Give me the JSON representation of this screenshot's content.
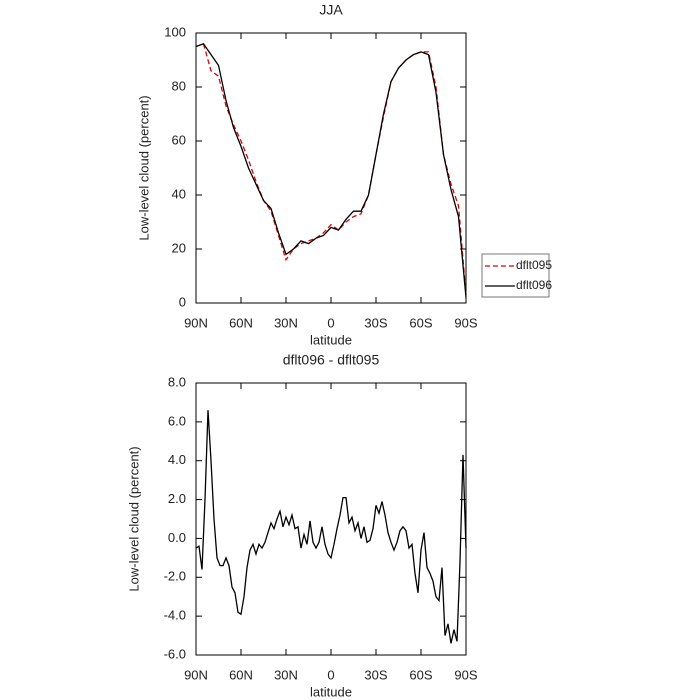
{
  "chart_data": [
    {
      "type": "line",
      "title": "JJA",
      "xlabel": "latitude",
      "ylabel": "Low-level cloud (percent)",
      "x": [
        90,
        85,
        80,
        75,
        70,
        65,
        60,
        55,
        50,
        45,
        40,
        35,
        30,
        25,
        20,
        15,
        10,
        5,
        0,
        -5,
        -10,
        -15,
        -20,
        -25,
        -30,
        -35,
        -40,
        -45,
        -50,
        -55,
        -60,
        -65,
        -70,
        -75,
        -80,
        -85,
        -90
      ],
      "series": [
        {
          "name": "dflt095",
          "color": "#e00000",
          "line_style": "dashed",
          "values": [
            95,
            96,
            86,
            84,
            73,
            66,
            60,
            53,
            45,
            38,
            34,
            25,
            16,
            20,
            22,
            23,
            24,
            26,
            29,
            27,
            30,
            32,
            33,
            40,
            55,
            69,
            82,
            87,
            90,
            92,
            93,
            93,
            80,
            55,
            44,
            36,
            3
          ]
        },
        {
          "name": "dflt096",
          "color": "#000000",
          "line_style": "solid",
          "values": [
            95,
            96,
            92,
            88,
            75,
            65,
            58,
            50,
            44,
            38,
            35,
            26,
            18,
            20,
            23,
            22,
            24,
            25,
            28,
            27,
            31,
            34,
            34,
            40,
            55,
            70,
            82,
            87,
            90,
            92,
            93,
            92,
            78,
            55,
            42,
            32,
            2
          ]
        }
      ],
      "xlim": [
        90,
        -90
      ],
      "xticks": [
        {
          "value": 90,
          "label": "90N"
        },
        {
          "value": 60,
          "label": "60N"
        },
        {
          "value": 30,
          "label": "30N"
        },
        0,
        {
          "value": -30,
          "label": "30S"
        },
        {
          "value": -60,
          "label": "60S"
        },
        {
          "value": -90,
          "label": "90S"
        }
      ],
      "ylim": [
        0,
        100
      ],
      "yticks": [
        0,
        20,
        40,
        60,
        80,
        100
      ],
      "grid": false,
      "legend": "right"
    },
    {
      "type": "line",
      "title": "dflt096 - dflt095",
      "xlabel": "latitude",
      "ylabel": "Low-level cloud (percent)",
      "x": [
        90,
        88,
        86,
        84,
        82,
        80,
        78,
        76,
        74,
        72,
        70,
        68,
        66,
        64,
        62,
        60,
        58,
        56,
        54,
        52,
        50,
        48,
        46,
        44,
        42,
        40,
        38,
        36,
        34,
        32,
        30,
        28,
        26,
        24,
        22,
        20,
        18,
        16,
        14,
        12,
        10,
        8,
        6,
        4,
        2,
        0,
        -2,
        -4,
        -6,
        -8,
        -10,
        -12,
        -14,
        -16,
        -18,
        -20,
        -22,
        -24,
        -26,
        -28,
        -30,
        -32,
        -34,
        -36,
        -38,
        -40,
        -42,
        -44,
        -46,
        -48,
        -50,
        -52,
        -54,
        -56,
        -58,
        -60,
        -62,
        -64,
        -66,
        -68,
        -70,
        -72,
        -74,
        -76,
        -78,
        -80,
        -82,
        -84,
        -86,
        -88,
        -90
      ],
      "series": [
        {
          "name": "dflt096 - dflt095",
          "color": "#000000",
          "line_style": "solid",
          "values": [
            -0.5,
            -0.4,
            -1.6,
            2,
            6.6,
            4,
            1,
            -1,
            -1.4,
            -1.4,
            -1,
            -1.4,
            -2.5,
            -2.8,
            -3.8,
            -3.9,
            -3,
            -1.5,
            -0.6,
            -0.3,
            -0.8,
            -0.3,
            -0.5,
            -0.2,
            0.3,
            0.8,
            0.5,
            1,
            1.4,
            0.6,
            1.1,
            0.7,
            1.2,
            0.5,
            0.6,
            -0.5,
            0.2,
            -0.3,
            0.9,
            -0.2,
            -0.5,
            -0.2,
            0.6,
            -0.3,
            -0.8,
            -1,
            -0.3,
            0.5,
            1.2,
            2.1,
            2.1,
            0.8,
            1.1,
            0.4,
            0.8,
            0,
            0.6,
            -0.2,
            -0.1,
            0.5,
            1.7,
            1.3,
            1.9,
            1.2,
            0.3,
            -0.2,
            -0.6,
            -0.2,
            0.4,
            0.6,
            0.4,
            -0.5,
            -0.3,
            -1.8,
            -2.8,
            -0.6,
            0.3,
            -1.5,
            -1.8,
            -2.2,
            -3,
            -3.2,
            -1.5,
            -5,
            -4.4,
            -5.4,
            -4.7,
            -5.3,
            -1.2,
            4.3,
            -0.5
          ]
        }
      ],
      "xlim": [
        90,
        -90
      ],
      "xticks": [
        {
          "value": 90,
          "label": "90N"
        },
        {
          "value": 60,
          "label": "60N"
        },
        {
          "value": 30,
          "label": "30N"
        },
        0,
        {
          "value": -30,
          "label": "30S"
        },
        {
          "value": -60,
          "label": "60S"
        },
        {
          "value": -90,
          "label": "90S"
        }
      ],
      "ylim": [
        -6,
        8
      ],
      "yticks": [
        {
          "value": -6,
          "label": "-6.0"
        },
        {
          "value": -4,
          "label": "-4.0"
        },
        {
          "value": -2,
          "label": "-2.0"
        },
        {
          "value": 0,
          "label": "0.0"
        },
        {
          "value": 2,
          "label": "2.0"
        },
        {
          "value": 4,
          "label": "4.0"
        },
        {
          "value": 6,
          "label": "6.0"
        },
        {
          "value": 8,
          "label": "8.0"
        }
      ],
      "grid": false
    }
  ]
}
